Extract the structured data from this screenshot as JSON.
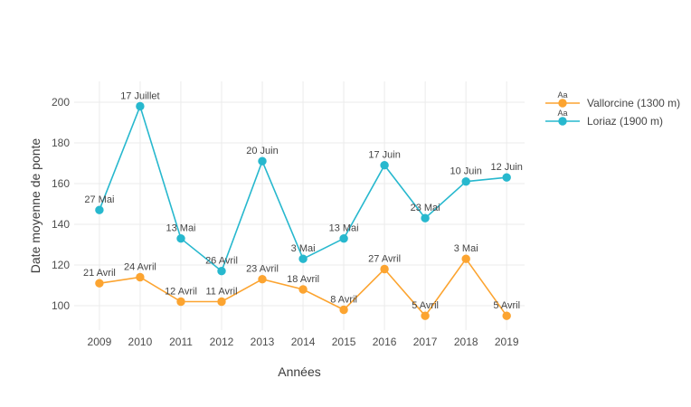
{
  "chart_data": {
    "type": "line",
    "title": "",
    "xlabel": "Années",
    "ylabel": "Date moyenne de ponte",
    "x": [
      2009,
      2010,
      2011,
      2012,
      2013,
      2014,
      2015,
      2016,
      2017,
      2018,
      2019
    ],
    "x_tick_labels": [
      "2009",
      "2010",
      "2011",
      "2012",
      "2013",
      "2014",
      "2015",
      "2016",
      "2017",
      "2018",
      "2019"
    ],
    "yticks": [
      100,
      120,
      140,
      160,
      180,
      200
    ],
    "y_tick_labels": [
      "100",
      "120",
      "140",
      "160",
      "180",
      "200"
    ],
    "xlim": [
      2008.38,
      2019.44
    ],
    "ylim": [
      88,
      210.2
    ],
    "grid": true,
    "legend_position": "right",
    "legend_sample_text": "Aa",
    "series": [
      {
        "name": "Vallorcine (1300 m)",
        "color": "#FCA430",
        "values": [
          111,
          114,
          102,
          102,
          113,
          108,
          98,
          118,
          95,
          123,
          95
        ],
        "point_labels": [
          "21 Avril",
          "24 Avril",
          "12 Avril",
          "11 Avril",
          "23 Avril",
          "18 Avril",
          "8 Avril",
          "27 Avril",
          "5 Avril",
          "3 Mai",
          "5 Avril"
        ]
      },
      {
        "name": "Loriaz (1900 m)",
        "color": "#27B8CE",
        "values": [
          147,
          198,
          133,
          117,
          171,
          123,
          133,
          169,
          143,
          161,
          163
        ],
        "point_labels": [
          "27 Mai",
          "17 Juillet",
          "13 Mai",
          "26 Avril",
          "20 Juin",
          "3 Mai",
          "13 Mai",
          "17 Juin",
          "23 Mai",
          "10 Juin",
          "12 Juin"
        ]
      }
    ]
  },
  "colors": {
    "background": "#FFFFFF",
    "grid": "#EBEBEB",
    "tick_label": "#4D4D4D",
    "axis_title": "#3C3C3C",
    "point_label": "#444444",
    "legend_text": "#444444"
  }
}
